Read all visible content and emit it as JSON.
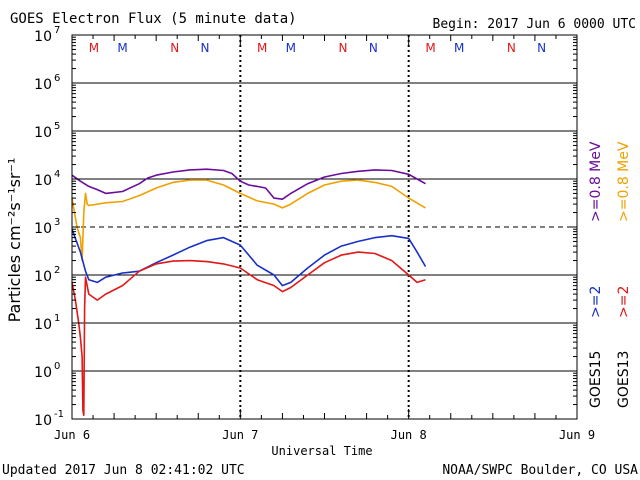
{
  "chart_data": {
    "type": "line",
    "title": "GOES Electron Flux (5 minute data)",
    "begin_label": "Begin: 2017 Jun 6 0000 UTC",
    "updated_label": "Updated 2017 Jun  8 02:41:02 UTC",
    "credit_label": "NOAA/SWPC Boulder, CO USA",
    "xlabel": "Universal Time",
    "ylabel": "Particles cm⁻²s⁻¹sr⁻¹",
    "xlim_days": [
      0,
      3
    ],
    "ylim_log10": [
      -1,
      7
    ],
    "x_tick_labels": [
      "Jun 6",
      "Jun 7",
      "Jun 8",
      "Jun 9"
    ],
    "y_tick_exponents": [
      "-1",
      "0",
      "1",
      "2",
      "3",
      "4",
      "5",
      "6",
      "7"
    ],
    "threshold_log10": 3,
    "mn_markers": [
      {
        "label": "M",
        "x": 0.13,
        "color": "#e01818"
      },
      {
        "label": "M",
        "x": 0.3,
        "color": "#1830c8"
      },
      {
        "label": "N",
        "x": 0.61,
        "color": "#e01818"
      },
      {
        "label": "N",
        "x": 0.79,
        "color": "#1830c8"
      },
      {
        "label": "M",
        "x": 1.13,
        "color": "#e01818"
      },
      {
        "label": "M",
        "x": 1.3,
        "color": "#1830c8"
      },
      {
        "label": "N",
        "x": 1.61,
        "color": "#e01818"
      },
      {
        "label": "N",
        "x": 1.79,
        "color": "#1830c8"
      },
      {
        "label": "M",
        "x": 2.13,
        "color": "#e01818"
      },
      {
        "label": "M",
        "x": 2.3,
        "color": "#1830c8"
      },
      {
        "label": "N",
        "x": 2.61,
        "color": "#e01818"
      },
      {
        "label": "N",
        "x": 2.79,
        "color": "#1830c8"
      }
    ],
    "legend": [
      {
        "label": "GOES15",
        "color": "#000000"
      },
      {
        "label": ">=2",
        "color": "#1830c8"
      },
      {
        "label": ">=0.8 MeV",
        "color": "#6a0d9c"
      },
      {
        "label": "GOES13",
        "color": "#000000"
      },
      {
        "label": ">=2",
        "color": "#e01818"
      },
      {
        "label": ">=0.8 MeV",
        "color": "#f0a000"
      }
    ],
    "series": [
      {
        "name": "GOES15 >=0.8 MeV",
        "color": "#6a0d9c",
        "x": [
          0,
          0.05,
          0.1,
          0.15,
          0.2,
          0.3,
          0.4,
          0.45,
          0.5,
          0.6,
          0.7,
          0.8,
          0.9,
          0.95,
          1.0,
          1.05,
          1.1,
          1.15,
          1.2,
          1.25,
          1.3,
          1.4,
          1.5,
          1.6,
          1.7,
          1.8,
          1.9,
          2.0,
          2.05,
          2.1
        ],
        "y": [
          12000.0,
          9000.0,
          7000.0,
          6000.0,
          5000.0,
          5500.0,
          8000.0,
          10500.0,
          12000.0,
          14000.0,
          15500.0,
          16000.0,
          15000.0,
          13000.0,
          9000.0,
          7500.0,
          7000.0,
          6500.0,
          4000.0,
          3800.0,
          5000.0,
          8000.0,
          11000.0,
          13000.0,
          14500.0,
          15500.0,
          15000.0,
          12500.0,
          10000.0,
          8000.0
        ]
      },
      {
        "name": "GOES13 >=0.8 MeV",
        "color": "#f0a000",
        "x": [
          0,
          0.03,
          0.05,
          0.06,
          0.07,
          0.08,
          0.09,
          0.1,
          0.2,
          0.3,
          0.4,
          0.5,
          0.6,
          0.7,
          0.8,
          0.9,
          1.0,
          1.1,
          1.2,
          1.25,
          1.3,
          1.4,
          1.5,
          1.6,
          1.7,
          1.8,
          1.9,
          2.0,
          2.1
        ],
        "y": [
          4000.0,
          1000.0,
          600,
          200,
          2000.0,
          5000.0,
          3000.0,
          2800.0,
          3200.0,
          3400.0,
          4500.0,
          6500.0,
          8500.0,
          9500.0,
          9500.0,
          7500.0,
          5000.0,
          3500.0,
          3000.0,
          2500.0,
          3000.0,
          5000.0,
          7500.0,
          9000.0,
          9500.0,
          8500.0,
          7000.0,
          4000.0,
          2500.0
        ]
      },
      {
        "name": "GOES15 >=2 MeV",
        "color": "#1830c8",
        "x": [
          0,
          0.05,
          0.08,
          0.1,
          0.15,
          0.2,
          0.3,
          0.4,
          0.5,
          0.6,
          0.7,
          0.8,
          0.9,
          1.0,
          1.05,
          1.1,
          1.2,
          1.25,
          1.3,
          1.4,
          1.5,
          1.6,
          1.7,
          1.8,
          1.9,
          2.0,
          2.05,
          2.1
        ],
        "y": [
          900,
          300,
          120,
          80,
          70,
          90,
          110,
          120,
          180,
          260,
          380,
          520,
          600,
          420,
          260,
          160,
          100,
          60,
          70,
          140,
          260,
          400,
          500,
          600,
          660,
          580,
          300,
          150
        ]
      },
      {
        "name": "GOES13 >=2 MeV",
        "color": "#e01818",
        "x": [
          0,
          0.02,
          0.04,
          0.05,
          0.06,
          0.065,
          0.07,
          0.075,
          0.08,
          0.1,
          0.15,
          0.2,
          0.3,
          0.4,
          0.5,
          0.6,
          0.7,
          0.8,
          0.9,
          1.0,
          1.1,
          1.2,
          1.25,
          1.3,
          1.4,
          1.5,
          1.6,
          1.7,
          1.8,
          1.9,
          2.0,
          2.05,
          2.1
        ],
        "y": [
          70,
          30,
          10,
          5,
          2,
          0.15,
          0.12,
          20,
          90,
          40,
          30,
          40,
          60,
          120,
          170,
          195,
          200,
          190,
          170,
          140,
          80,
          60,
          45,
          55,
          100,
          180,
          260,
          300,
          280,
          200,
          100,
          70,
          80
        ]
      }
    ]
  }
}
